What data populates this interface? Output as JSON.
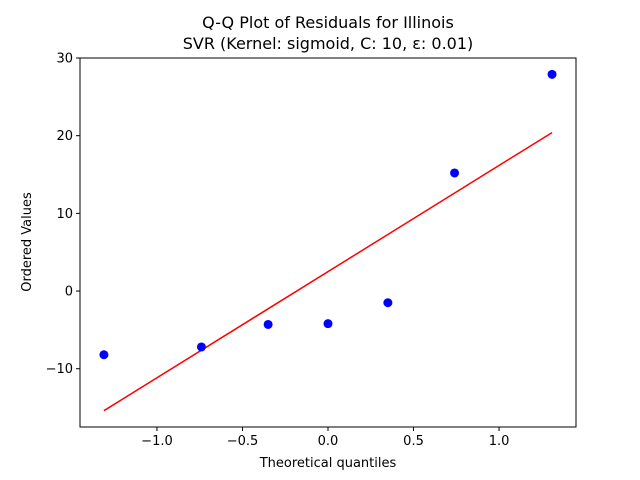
{
  "chart_data": {
    "type": "scatter",
    "title_line1": "Q-Q Plot of Residuals for Illinois",
    "title_line2": "SVR (Kernel: sigmoid, C: 10, ε: 0.01)",
    "xlabel": "Theoretical quantiles",
    "ylabel": "Ordered Values",
    "xlim": [
      -1.45,
      1.45
    ],
    "ylim": [
      -17.5,
      30
    ],
    "xticks": [
      -1.0,
      -0.5,
      0.0,
      0.5,
      1.0
    ],
    "xtick_labels": [
      "−1.0",
      "−0.5",
      "0.0",
      "0.5",
      "1.0"
    ],
    "yticks": [
      -10,
      0,
      10,
      20,
      30
    ],
    "ytick_labels": [
      "−10",
      "0",
      "10",
      "20",
      "30"
    ],
    "grid": false,
    "series": [
      {
        "kind": "points",
        "color": "#0000ff",
        "x": [
          -1.31,
          -0.74,
          -0.35,
          0.0,
          0.35,
          0.74,
          1.31
        ],
        "y": [
          -8.2,
          -7.2,
          -4.3,
          -4.2,
          -1.5,
          15.2,
          27.9
        ]
      },
      {
        "kind": "fit-line",
        "color": "#ff0000",
        "x": [
          -1.31,
          1.31
        ],
        "y": [
          -15.4,
          20.4
        ]
      }
    ]
  }
}
